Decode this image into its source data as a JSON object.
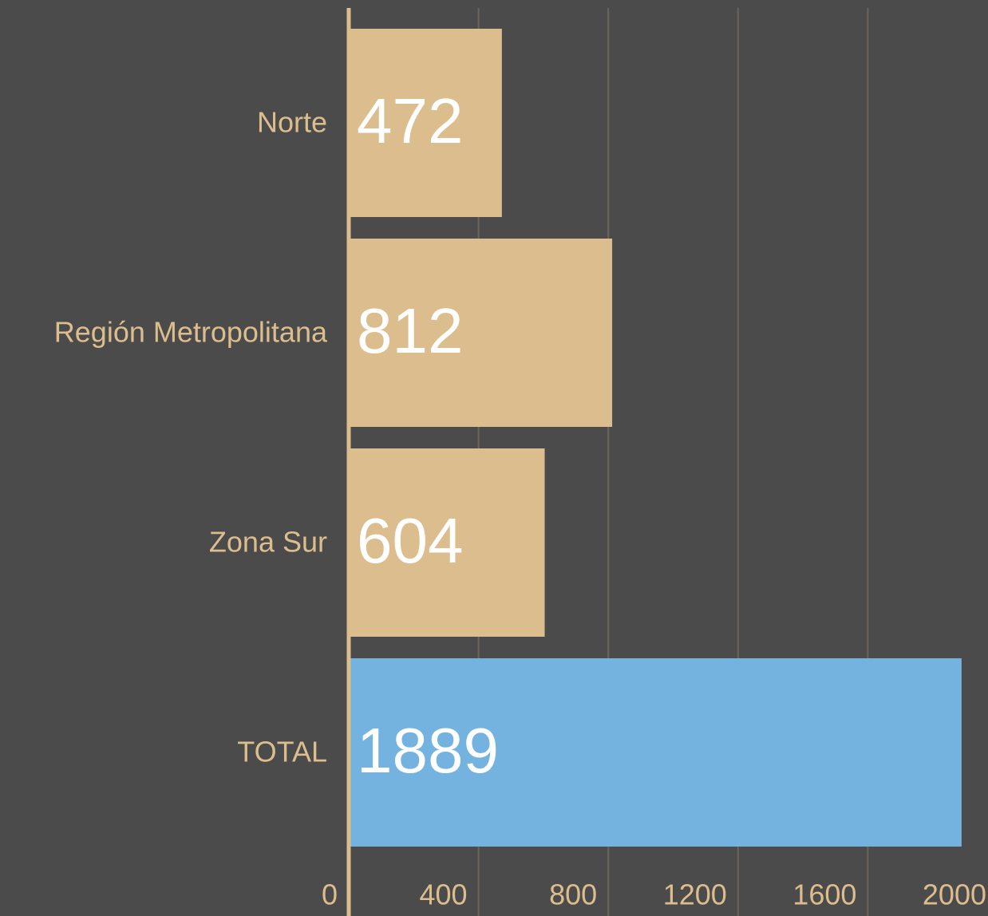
{
  "chart_data": {
    "type": "barh",
    "categories": [
      "Norte",
      "Región Metropolitana",
      "Zona Sur",
      "TOTAL"
    ],
    "values": [
      472,
      812,
      604,
      1889
    ],
    "colors": [
      "#dcbe8e",
      "#dcbe8e",
      "#dcbe8e",
      "#74b3e0"
    ],
    "xlim": [
      0,
      2000
    ],
    "xticks": [
      0,
      400,
      800,
      1200,
      1600,
      2000
    ],
    "grid": true
  }
}
